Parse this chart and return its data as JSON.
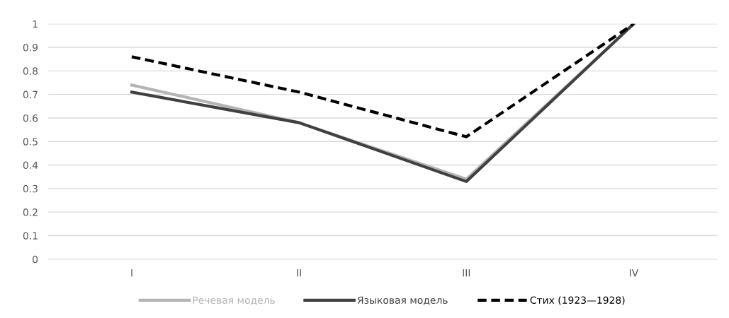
{
  "chart_data": {
    "type": "line",
    "categories": [
      "I",
      "II",
      "III",
      "IV"
    ],
    "series": [
      {
        "name": "Речевая модель",
        "color": "#b4b4b4",
        "values": [
          0.74,
          0.58,
          0.34,
          1.0
        ]
      },
      {
        "name": "Языковая модель",
        "color": "#404040",
        "values": [
          0.71,
          0.58,
          0.33,
          1.0
        ]
      },
      {
        "name": "Стих (1923—1928)",
        "color": "#000000",
        "values": [
          0.86,
          0.71,
          0.52,
          1.0
        ],
        "line_style": "dashed"
      }
    ],
    "ylim": [
      0,
      1
    ],
    "yticks": [
      0,
      0.1,
      0.2,
      0.3,
      0.4,
      0.5,
      0.6,
      0.7,
      0.8,
      0.9,
      1
    ],
    "grid": "y",
    "legend": "bottom",
    "marker": "none",
    "line_style": "solid"
  }
}
